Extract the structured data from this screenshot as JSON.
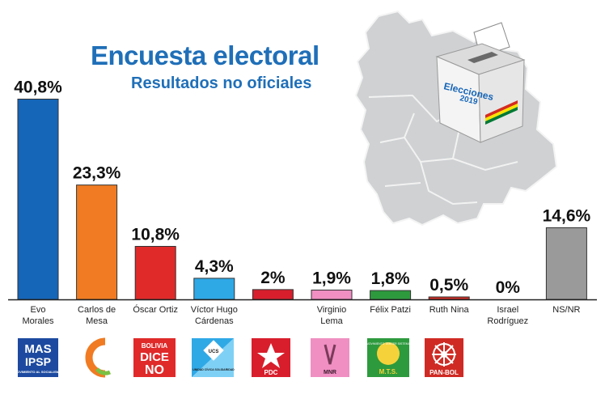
{
  "title": "Encuesta electoral",
  "subtitle": "Resultados no oficiales",
  "ballot_box_label": "Elecciones",
  "ballot_box_year": "2019",
  "logos": {
    "mas_line1": "MAS",
    "mas_line2": "IPSP",
    "mas_line3": "MOVIMIENTO AL SOCIALISMO",
    "bdn_line1": "BOLIVIA",
    "bdn_line2": "DICE",
    "bdn_line3": "NO",
    "ucs_line1": "UCS",
    "ucs_line2": "UNIDAD CÍVICA SOLIDARIDAD",
    "pdc": "PDC",
    "mnr": "MNR",
    "mts": "M.T.S.",
    "mts_arc": "MOVIMIENTO TERCER SISTEMA",
    "panbol": "PAN-BOL"
  },
  "colors": {
    "mas": "#1565b8",
    "cc": "#f07b22",
    "bdn": "#e02a2a",
    "ucs": "#2fa8e6",
    "pdc": "#d81e2c",
    "mnr": "#ef8fc2",
    "mts": "#2d9a3e",
    "panbol": "#cf2b24",
    "nsnr": "#9a9a9a"
  },
  "chart_data": {
    "type": "bar",
    "title": "Encuesta electoral",
    "subtitle": "Resultados no oficiales",
    "ylim": [
      0,
      45
    ],
    "categories": [
      [
        "Evo",
        "Morales"
      ],
      [
        "Carlos de",
        "Mesa"
      ],
      [
        "Óscar Ortiz"
      ],
      [
        "Víctor Hugo",
        "Cárdenas"
      ],
      [
        ""
      ],
      [
        "Virginio",
        "Lema"
      ],
      [
        "Félix Patzi"
      ],
      [
        "Ruth Nina"
      ],
      [
        "Israel",
        "Rodríguez"
      ],
      [
        "NS/NR"
      ]
    ],
    "values": [
      40.8,
      23.3,
      10.8,
      4.3,
      2,
      1.9,
      1.8,
      0.5,
      0,
      14.6
    ],
    "value_labels": [
      "40,8%",
      "23,3%",
      "10,8%",
      "4,3%",
      "2%",
      "1,9%",
      "1,8%",
      "0,5%",
      "0%",
      "14,6%"
    ],
    "colors": [
      "#1565b8",
      "#f07b22",
      "#e02a2a",
      "#2fa8e6",
      "#d81e2c",
      "#ef8fc2",
      "#2d9a3e",
      "#cf2b24",
      "#cf2b24",
      "#9a9a9a"
    ]
  }
}
